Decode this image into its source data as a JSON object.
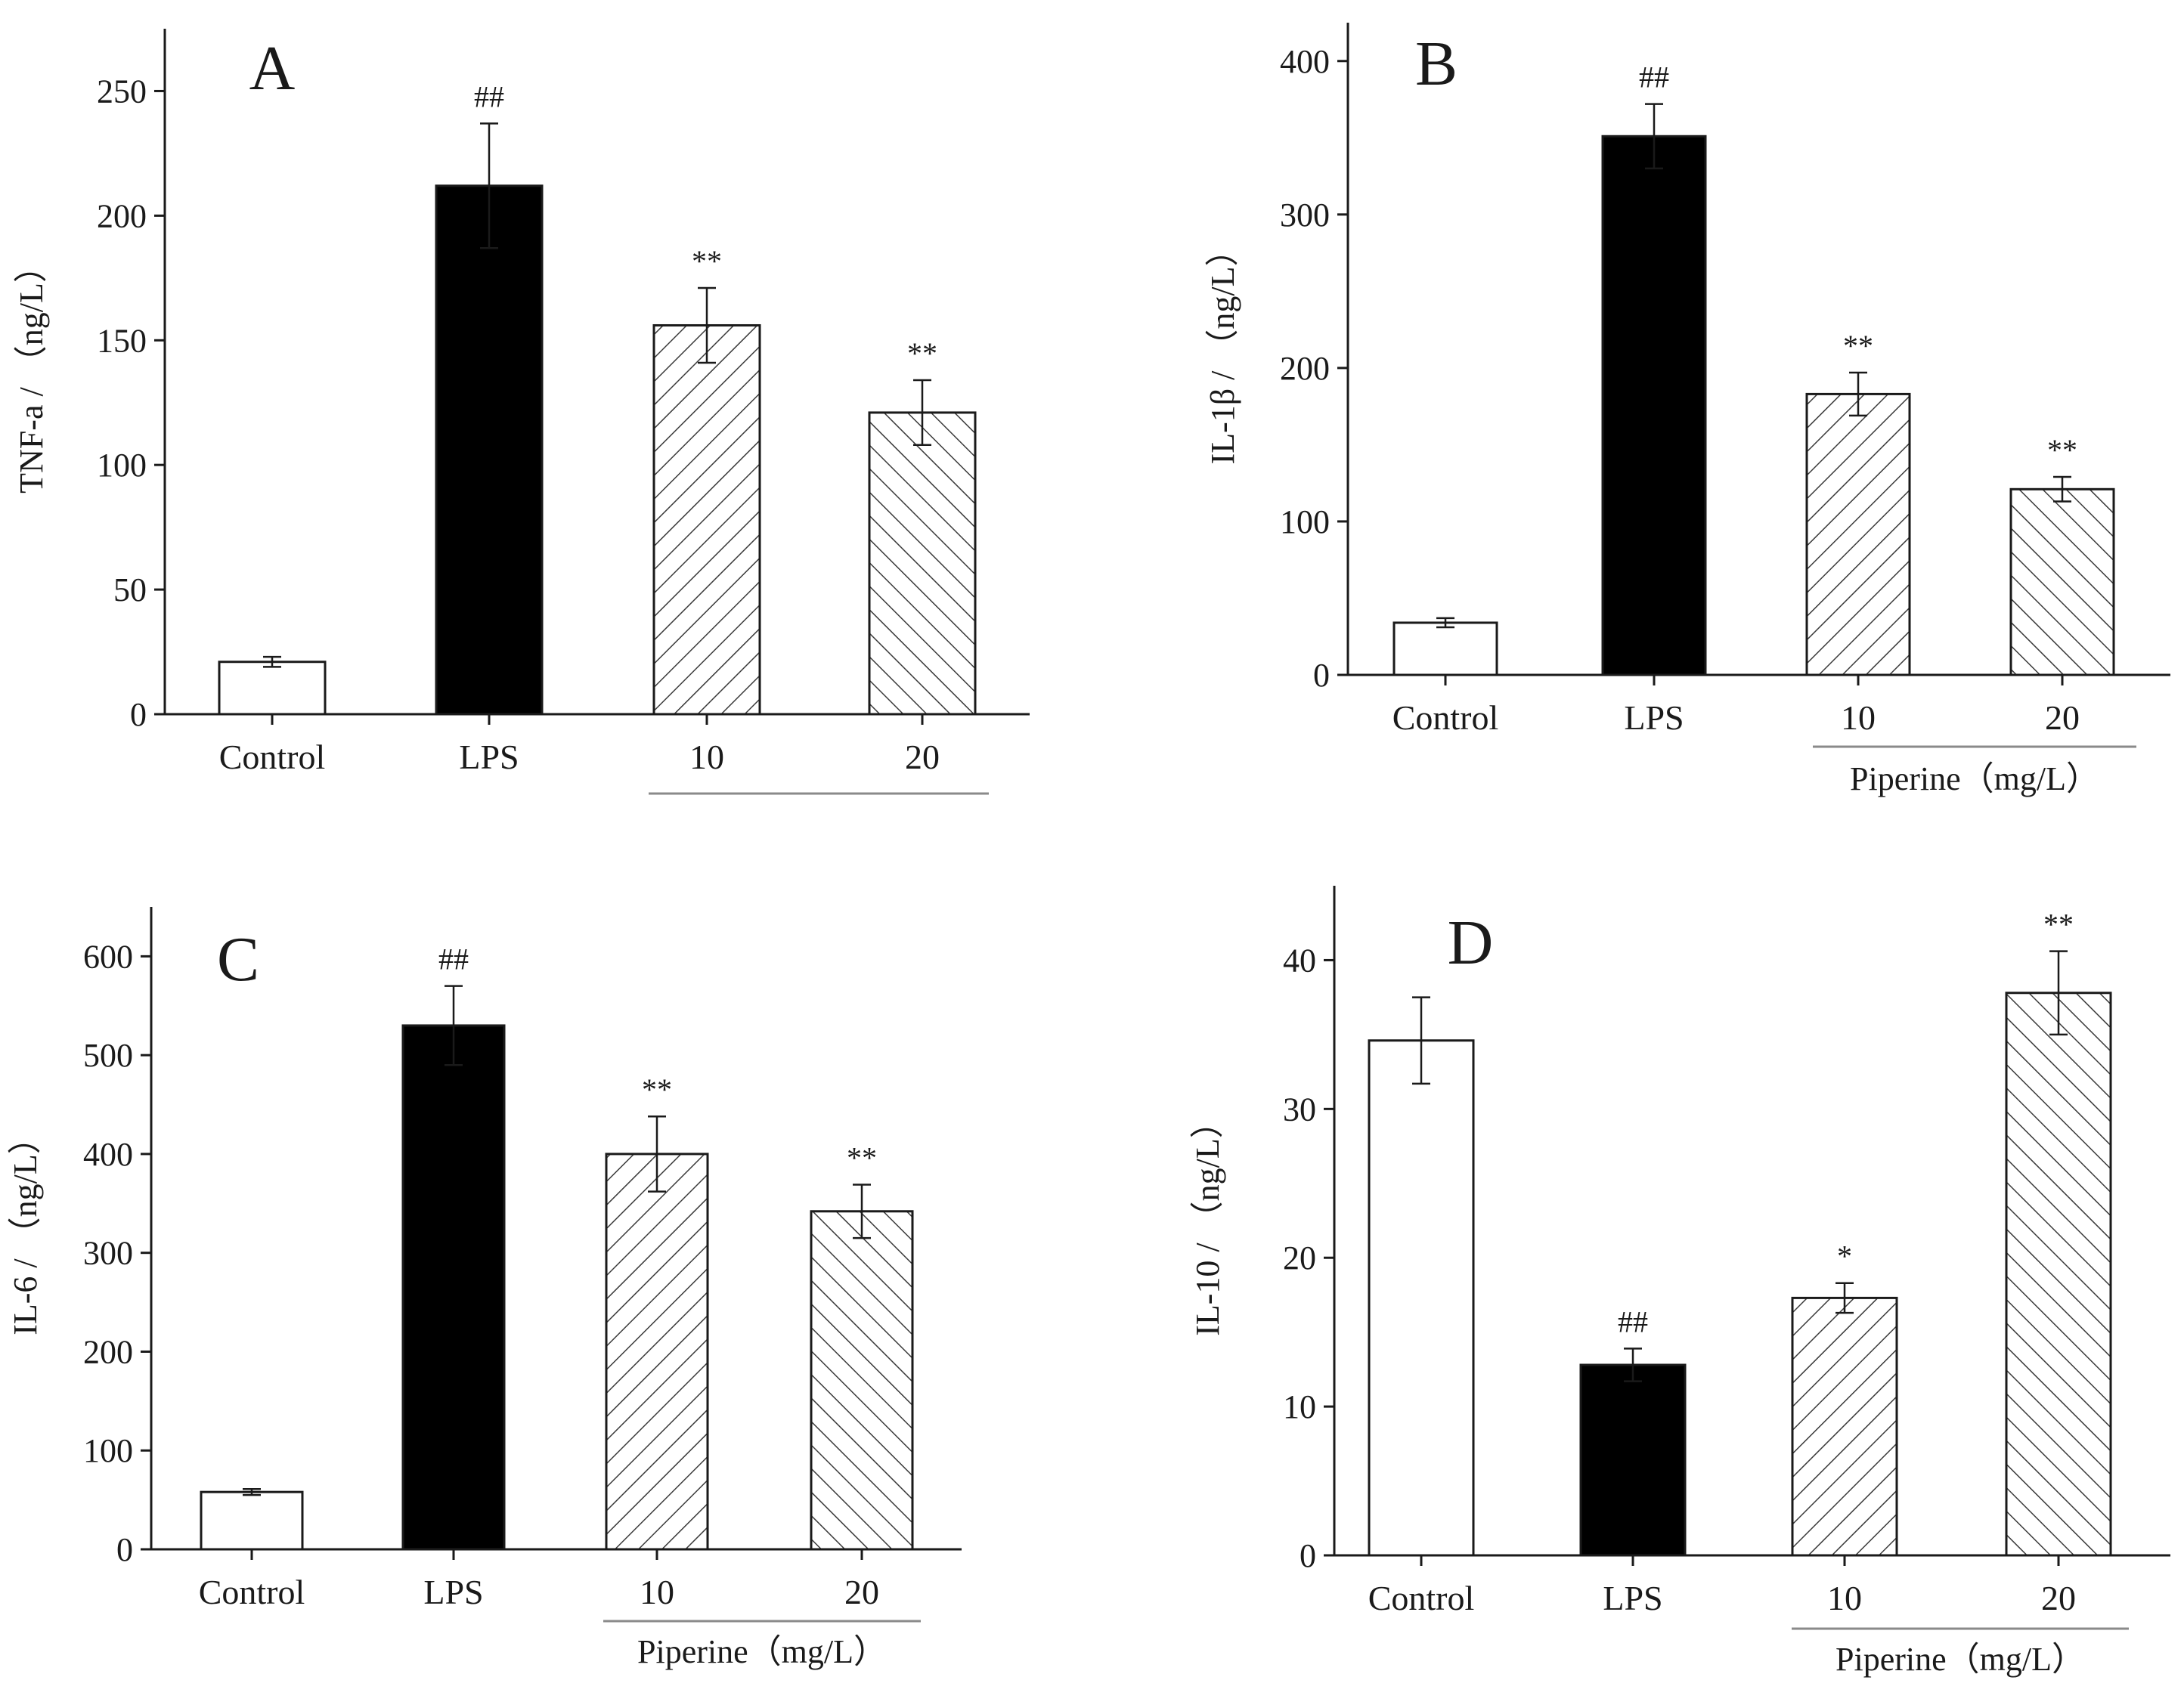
{
  "figure_title": "",
  "colors": {
    "axis": "#1a1a1a",
    "bar_black": "#000000",
    "bar_white": "#ffffff",
    "hatch": "#3a3a3a",
    "group_line": "#8a8a8a"
  },
  "chart_data": [
    {
      "id": "A",
      "type": "bar",
      "panel_label": "A",
      "ylabel": "TNF-a / （ng/L）",
      "ylim": [
        0,
        275
      ],
      "yticks": [
        0,
        50,
        100,
        150,
        200,
        250
      ],
      "categories": [
        "Control",
        "LPS",
        "10",
        "20"
      ],
      "values": [
        21,
        212,
        156,
        121
      ],
      "errors": [
        2,
        25,
        15,
        13
      ],
      "fills": [
        "white",
        "black",
        "hatch-fwd",
        "hatch-back"
      ],
      "annotations": [
        "",
        "##",
        "**",
        "**"
      ],
      "group_label": ""
    },
    {
      "id": "B",
      "type": "bar",
      "panel_label": "B",
      "ylabel": "IL-1β / （ng/L）",
      "ylim": [
        0,
        425
      ],
      "yticks": [
        0,
        100,
        200,
        300,
        400
      ],
      "categories": [
        "Control",
        "LPS",
        "10",
        "20"
      ],
      "values": [
        34,
        351,
        183,
        121
      ],
      "errors": [
        3,
        21,
        14,
        8
      ],
      "fills": [
        "white",
        "black",
        "hatch-fwd",
        "hatch-back"
      ],
      "annotations": [
        "",
        "##",
        "**",
        "**"
      ],
      "group_label": "Piperine（mg/L）"
    },
    {
      "id": "C",
      "type": "bar",
      "panel_label": "C",
      "ylabel": "IL-6 / （ng/L）",
      "ylim": [
        0,
        650
      ],
      "yticks": [
        0,
        100,
        200,
        300,
        400,
        500,
        600
      ],
      "categories": [
        "Control",
        "LPS",
        "10",
        "20"
      ],
      "values": [
        58,
        530,
        400,
        342
      ],
      "errors": [
        3,
        40,
        38,
        27
      ],
      "fills": [
        "white",
        "black",
        "hatch-fwd",
        "hatch-back"
      ],
      "annotations": [
        "",
        "##",
        "**",
        "**"
      ],
      "group_label": "Piperine（mg/L）"
    },
    {
      "id": "D",
      "type": "bar",
      "panel_label": "D",
      "ylabel": "IL-10 / （ng/L）",
      "ylim": [
        0,
        45
      ],
      "yticks": [
        0,
        10,
        20,
        30,
        40
      ],
      "categories": [
        "Control",
        "LPS",
        "10",
        "20"
      ],
      "values": [
        34.6,
        12.8,
        17.3,
        37.8
      ],
      "errors": [
        2.9,
        1.1,
        1.0,
        2.8
      ],
      "fills": [
        "white",
        "black",
        "hatch-fwd",
        "hatch-back"
      ],
      "annotations": [
        "",
        "##",
        "*",
        "**"
      ],
      "group_label": "Piperine（mg/L）"
    }
  ]
}
